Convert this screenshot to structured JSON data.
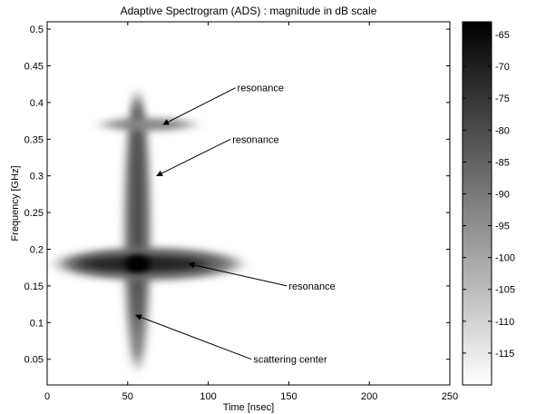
{
  "chart_data": {
    "type": "heatmap",
    "title": "Adaptive Spectrogram (ADS) : magnitude in dB scale",
    "xlabel": "Time [nsec]",
    "ylabel": "Frequency [GHz]",
    "xlim": [
      0,
      250
    ],
    "ylim": [
      0.015,
      0.51
    ],
    "xticks": [
      0,
      50,
      100,
      150,
      200,
      250
    ],
    "yticks": [
      0.05,
      0.1,
      0.15,
      0.2,
      0.25,
      0.3,
      0.35,
      0.4,
      0.45,
      0.5
    ],
    "xtick_labels": [
      "0",
      "50",
      "100",
      "150",
      "200",
      "250"
    ],
    "ytick_labels": [
      "0.05",
      "0.1",
      "0.15",
      "0.2",
      "0.25",
      "0.3",
      "0.35",
      "0.4",
      "0.45",
      "0.5"
    ],
    "colorbar": {
      "range": [
        -120,
        -63
      ],
      "ticks": [
        -65,
        -70,
        -75,
        -80,
        -85,
        -90,
        -95,
        -100,
        -105,
        -110,
        -115
      ],
      "tick_labels": [
        "-65",
        "-70",
        "-75",
        "-80",
        "-85",
        "-90",
        "-95",
        "-100",
        "-105",
        "-110",
        "-115"
      ],
      "colormap": "gray (white = low, black = high)"
    },
    "features": [
      {
        "kind": "vertical-streak",
        "time": 56,
        "freq_range": [
          0.04,
          0.41
        ],
        "peak_db": -80
      },
      {
        "kind": "horizontal-streak",
        "freq": 0.18,
        "time_range": [
          8,
          118
        ],
        "peak_db": -63
      },
      {
        "kind": "horizontal-streak",
        "freq": 0.37,
        "time_range": [
          35,
          90
        ],
        "peak_db": -85
      }
    ],
    "annotations": [
      {
        "text": "resonance",
        "text_x": 118,
        "text_y": 0.42,
        "arrow_to_x": 72,
        "arrow_to_y": 0.37
      },
      {
        "text": "resonance",
        "text_x": 115,
        "text_y": 0.35,
        "arrow_to_x": 68,
        "arrow_to_y": 0.3
      },
      {
        "text": "resonance",
        "text_x": 150,
        "text_y": 0.15,
        "arrow_to_x": 88,
        "arrow_to_y": 0.18
      },
      {
        "text": "scattering center",
        "text_x": 128,
        "text_y": 0.05,
        "arrow_to_x": 55,
        "arrow_to_y": 0.11
      }
    ],
    "grid": false,
    "legend": "none"
  }
}
